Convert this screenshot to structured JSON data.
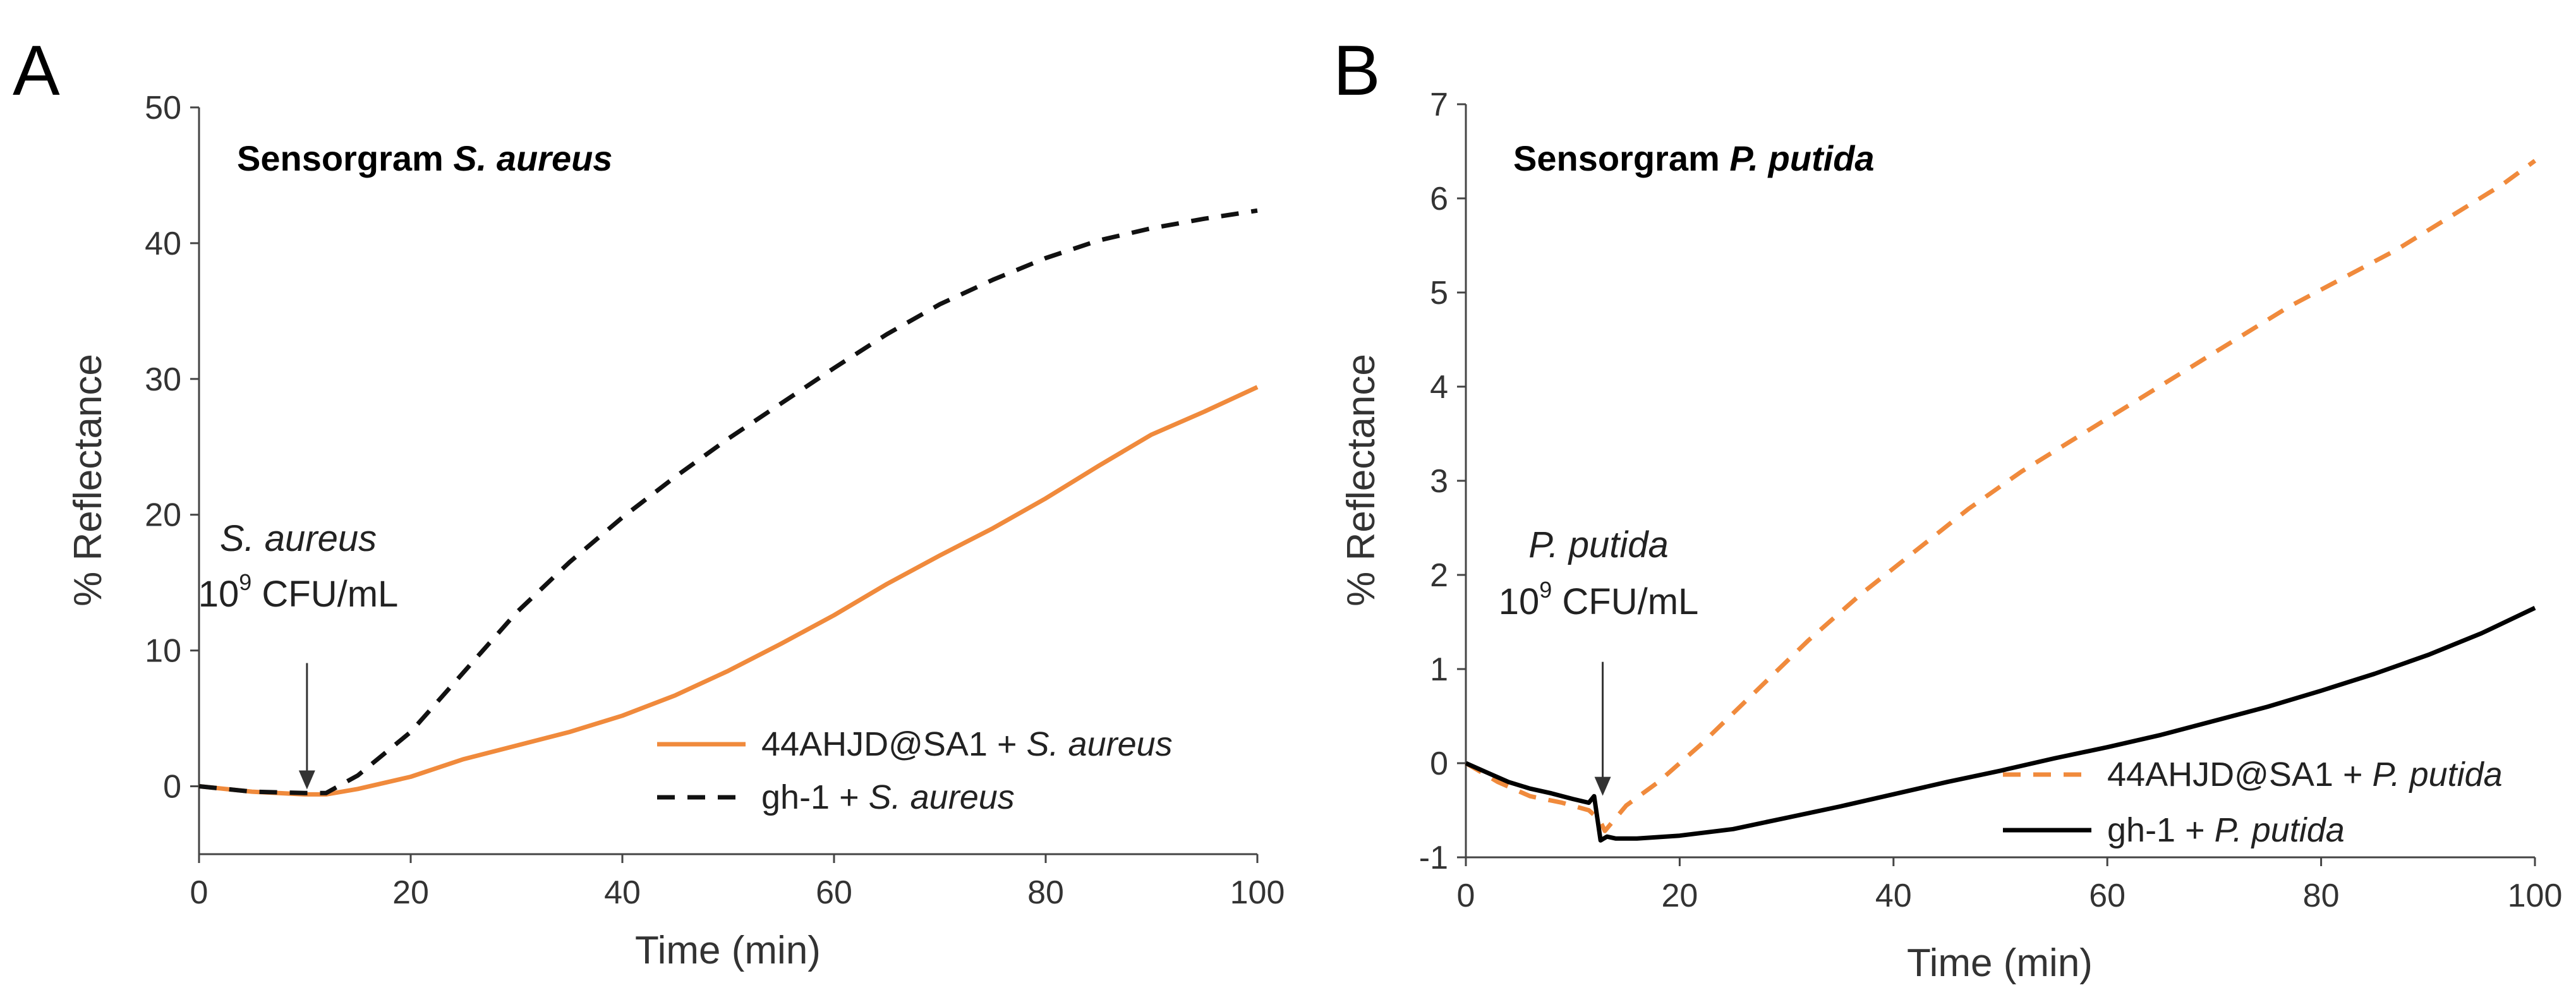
{
  "chart_data": [
    {
      "panel_label": "A",
      "type": "line",
      "title_prefix": "Sensorgram ",
      "title_italic": "S. aureus",
      "xlabel": "Time (min)",
      "ylabel": "% Reflectance",
      "xlim": [
        0,
        100
      ],
      "ylim": [
        -5,
        50
      ],
      "xticks": [
        0,
        20,
        40,
        60,
        80,
        100
      ],
      "yticks": [
        0,
        10,
        20,
        30,
        40,
        50
      ],
      "annotation": {
        "line1": "S. aureus",
        "base": "10",
        "exp": "9",
        "unit": " CFU/mL",
        "x": 10.2,
        "y": -0.6
      },
      "series": [
        {
          "name": "44AHJD@SA1 + S. aureus",
          "legend_prefix": "44AHJD@SA1 + ",
          "legend_italic": "S. aureus",
          "color": "#f08a3c",
          "dash": "solid",
          "x": [
            0,
            5,
            10,
            12,
            15,
            20,
            25,
            30,
            35,
            40,
            45,
            50,
            55,
            60,
            65,
            70,
            75,
            80,
            85,
            90,
            95,
            100
          ],
          "y": [
            0,
            -0.4,
            -0.6,
            -0.6,
            -0.2,
            0.7,
            2.0,
            3.0,
            4.0,
            5.2,
            6.7,
            8.5,
            10.5,
            12.6,
            14.9,
            17.0,
            19.0,
            21.2,
            23.6,
            25.9,
            27.6,
            29.4
          ]
        },
        {
          "name": "gh-1 + S. aureus",
          "legend_prefix": "gh-1 + ",
          "legend_italic": "S. aureus",
          "color": "#111111",
          "dash": "dashed",
          "x": [
            0,
            5,
            10,
            12,
            15,
            20,
            25,
            30,
            35,
            40,
            45,
            50,
            55,
            60,
            65,
            70,
            75,
            80,
            85,
            90,
            95,
            100
          ],
          "y": [
            0,
            -0.4,
            -0.5,
            -0.5,
            0.8,
            4.0,
            8.4,
            12.8,
            16.5,
            19.8,
            22.8,
            25.6,
            28.2,
            30.8,
            33.3,
            35.5,
            37.3,
            38.9,
            40.2,
            41.1,
            41.8,
            42.4
          ]
        }
      ]
    },
    {
      "panel_label": "B",
      "type": "line",
      "title_prefix": "Sensorgram ",
      "title_italic": "P. putida",
      "xlabel": "Time (min)",
      "ylabel": "% Reflectance",
      "xlim": [
        0,
        100
      ],
      "ylim": [
        -1,
        7
      ],
      "xticks": [
        0,
        20,
        40,
        60,
        80,
        100
      ],
      "yticks": [
        -1,
        0,
        1,
        2,
        3,
        4,
        5,
        6,
        7
      ],
      "annotation": {
        "line1": "P. putida",
        "base": "10",
        "exp": "9",
        "unit": " CFU/mL",
        "x": 12.8,
        "y": -0.4
      },
      "series": [
        {
          "name": "44AHJD@SA1 + P. putida",
          "legend_prefix": "44AHJD@SA1 + ",
          "legend_italic": "P. putida",
          "color": "#f08a3c",
          "dash": "dashed",
          "x": [
            0,
            3,
            6,
            9,
            11.5,
            12.5,
            13,
            15,
            18,
            22,
            27,
            32,
            37,
            42,
            47,
            52,
            57,
            62,
            67,
            72,
            77,
            82,
            87,
            92,
            97,
            100
          ],
          "y": [
            0,
            -0.2,
            -0.35,
            -0.42,
            -0.5,
            -0.6,
            -0.72,
            -0.45,
            -0.2,
            0.2,
            0.75,
            1.3,
            1.8,
            2.25,
            2.7,
            3.1,
            3.45,
            3.8,
            4.15,
            4.5,
            4.85,
            5.15,
            5.45,
            5.8,
            6.15,
            6.4
          ]
        },
        {
          "name": "gh-1 + P. putida",
          "legend_prefix": "gh-1 + ",
          "legend_italic": "P. putida",
          "color": "#000000",
          "dash": "solid",
          "x": [
            0,
            2,
            4,
            6,
            8,
            10,
            11.5,
            12,
            12.6,
            13.2,
            14,
            16,
            20,
            25,
            30,
            35,
            40,
            45,
            50,
            55,
            60,
            65,
            70,
            75,
            80,
            85,
            90,
            95,
            100
          ],
          "y": [
            0,
            -0.1,
            -0.2,
            -0.27,
            -0.32,
            -0.38,
            -0.42,
            -0.35,
            -0.82,
            -0.78,
            -0.8,
            -0.8,
            -0.77,
            -0.7,
            -0.58,
            -0.46,
            -0.33,
            -0.2,
            -0.08,
            0.05,
            0.17,
            0.3,
            0.45,
            0.6,
            0.77,
            0.95,
            1.15,
            1.38,
            1.65
          ]
        }
      ]
    }
  ]
}
